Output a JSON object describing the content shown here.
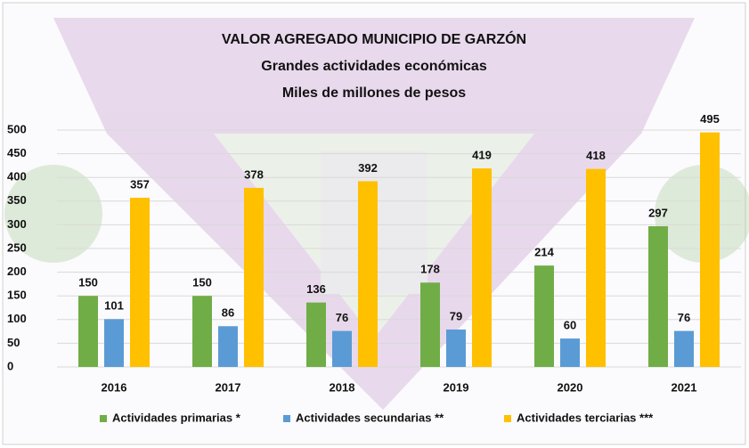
{
  "chart_data": {
    "type": "bar",
    "title": "VALOR AGREGADO MUNICIPIO DE GARZÓN",
    "subtitle": [
      "Grandes actividades económicas",
      "Miles de millones de pesos"
    ],
    "categories": [
      "2016",
      "2017",
      "2018",
      "2019",
      "2020",
      "2021"
    ],
    "series": [
      {
        "name": "Actividades primarias *",
        "color": "#70ad47",
        "values": [
          150,
          150,
          136,
          178,
          214,
          297
        ]
      },
      {
        "name": "Actividades secundarias **",
        "color": "#5b9bd5",
        "values": [
          101,
          86,
          76,
          79,
          60,
          76
        ]
      },
      {
        "name": "Actividades terciarias ***",
        "color": "#ffc000",
        "values": [
          357,
          378,
          392,
          419,
          418,
          495
        ]
      }
    ],
    "ylim": [
      0,
      500
    ],
    "yticks": [
      0,
      50,
      100,
      150,
      200,
      250,
      300,
      350,
      400,
      450,
      500
    ],
    "grid": true,
    "data_labels": true,
    "legend": "bottom"
  }
}
